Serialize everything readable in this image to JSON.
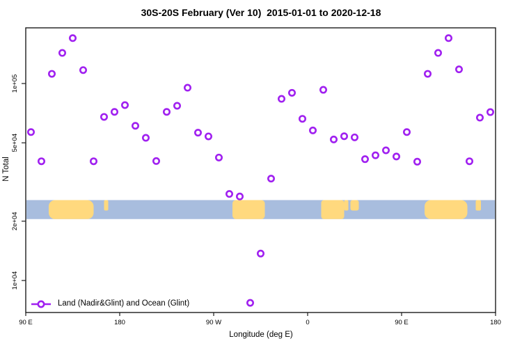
{
  "title": "30S-20S February (Ver 10)  2015-01-01 to 2020-12-18",
  "legend": {
    "label": "Land (Nadir&Glint) and Ocean (Glint)"
  },
  "colors": {
    "marker": "#A020F0",
    "marker_fill": "#ffffff",
    "ocean": "#A8BDDE",
    "land": "#FFD97E",
    "axis": "#1c1c1c"
  },
  "chart_data": {
    "type": "scatter",
    "title": "30S-20S February (Ver 10)  2015-01-01 to 2020-12-18",
    "xlabel": "Longitude (deg E)",
    "ylabel": "N Total",
    "grid": false,
    "legend_position": "bottom-left-inside",
    "x_axis": {
      "kind": "longitude-wrapped-east",
      "range_deg": [
        90,
        540
      ],
      "ticks": [
        {
          "deg": 90,
          "label": "90 E"
        },
        {
          "deg": 180,
          "label": "180"
        },
        {
          "deg": 270,
          "label": "90 W"
        },
        {
          "deg": 360,
          "label": "0"
        },
        {
          "deg": 450,
          "label": "90 E"
        },
        {
          "deg": 540,
          "label": "180"
        }
      ]
    },
    "y_axis": {
      "scale": "log10",
      "range": [
        6800,
        193000
      ],
      "ticks": [
        {
          "value": 100000,
          "label": "1e+05"
        },
        {
          "value": 50000,
          "label": "5e+04"
        },
        {
          "value": 20000,
          "label": "2e+04"
        },
        {
          "value": 10000,
          "label": "1e+04"
        }
      ]
    },
    "series": [
      {
        "name": "Land (Nadir&Glint) and Ocean (Glint)",
        "marker": "open-circle",
        "color": "#A020F0",
        "x_deg": [
          95,
          105,
          115,
          125,
          135,
          145,
          155,
          165,
          175,
          185,
          195,
          205,
          215,
          225,
          235,
          245,
          255,
          265,
          275,
          285,
          295,
          305,
          315,
          325,
          335,
          345,
          355,
          365,
          375,
          385,
          395,
          405,
          415,
          425,
          435,
          445,
          455,
          465,
          475,
          485,
          495,
          505,
          515,
          525,
          535
        ],
        "n_total": [
          56700,
          40300,
          112000,
          143000,
          170000,
          117000,
          40300,
          67700,
          71800,
          77700,
          61000,
          53000,
          40400,
          71800,
          77100,
          95200,
          56300,
          53900,
          42100,
          27500,
          26700,
          7700,
          13700,
          32900,
          83600,
          89700,
          66200,
          57800,
          92900,
          52000,
          54000,
          53300,
          41300,
          43200,
          45800,
          42600,
          56700,
          40100,
          112000,
          143000,
          170000,
          118000,
          40300,
          67100,
          71600
        ]
      }
    ],
    "map_band": {
      "description": "coastline strip for 30S-20S latitude band",
      "n_range": [
        20500,
        25600
      ],
      "ocean_color": "#A8BDDE",
      "land_color": "#FFD97E",
      "land_regions": [
        {
          "name": "australia",
          "from_deg": 112,
          "to_deg": 155,
          "extent": "full",
          "rx": 9
        },
        {
          "name": "new-caledonia",
          "from_deg": 165,
          "to_deg": 169,
          "extent": "top",
          "rx": 2
        },
        {
          "name": "south-america",
          "from_deg": 288,
          "to_deg": 319,
          "extent": "full",
          "rx": 5
        },
        {
          "name": "africa",
          "from_deg": 373,
          "to_deg": 395,
          "extent": "full",
          "rx": 4
        },
        {
          "name": "africa-east-coast",
          "from_deg": 395,
          "to_deg": 399,
          "extent": "top",
          "rx": 2
        },
        {
          "name": "madagascar",
          "from_deg": 401,
          "to_deg": 409,
          "extent": "top",
          "rx": 3
        },
        {
          "name": "australia-repeat",
          "from_deg": 472,
          "to_deg": 513,
          "extent": "full",
          "rx": 9
        },
        {
          "name": "fiji",
          "from_deg": 521,
          "to_deg": 526,
          "extent": "top",
          "rx": 2
        }
      ]
    }
  }
}
